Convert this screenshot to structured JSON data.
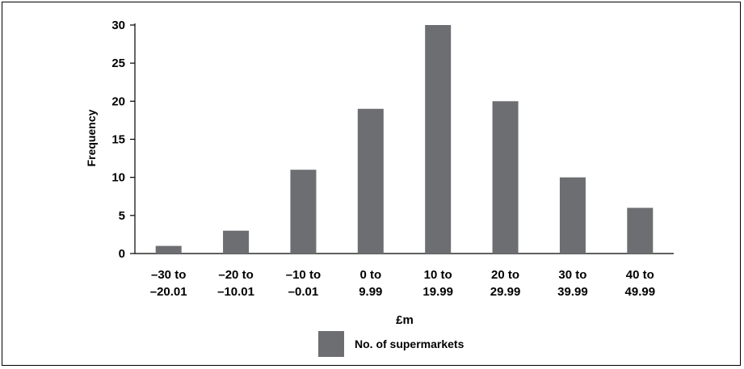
{
  "chart_data": {
    "type": "bar",
    "categories": [
      [
        "–30 to",
        "–20.01"
      ],
      [
        "–20 to",
        "–10.01"
      ],
      [
        "–10 to",
        "–0.01"
      ],
      [
        "0 to",
        "9.99"
      ],
      [
        "10 to",
        "19.99"
      ],
      [
        "20 to",
        "29.99"
      ],
      [
        "30 to",
        "39.99"
      ],
      [
        "40 to",
        "49.99"
      ]
    ],
    "series": [
      {
        "name": "No. of supermarkets",
        "values": [
          1,
          3,
          11,
          19,
          30,
          20,
          10,
          6
        ],
        "color": "#6d6e71"
      }
    ],
    "xlabel": "£m",
    "ylabel": "Frequency",
    "ylim": [
      0,
      30
    ],
    "yticks": [
      "0",
      "5",
      "10",
      "15",
      "20",
      "25",
      "30"
    ],
    "grid": false,
    "legend": "bottom-center"
  }
}
